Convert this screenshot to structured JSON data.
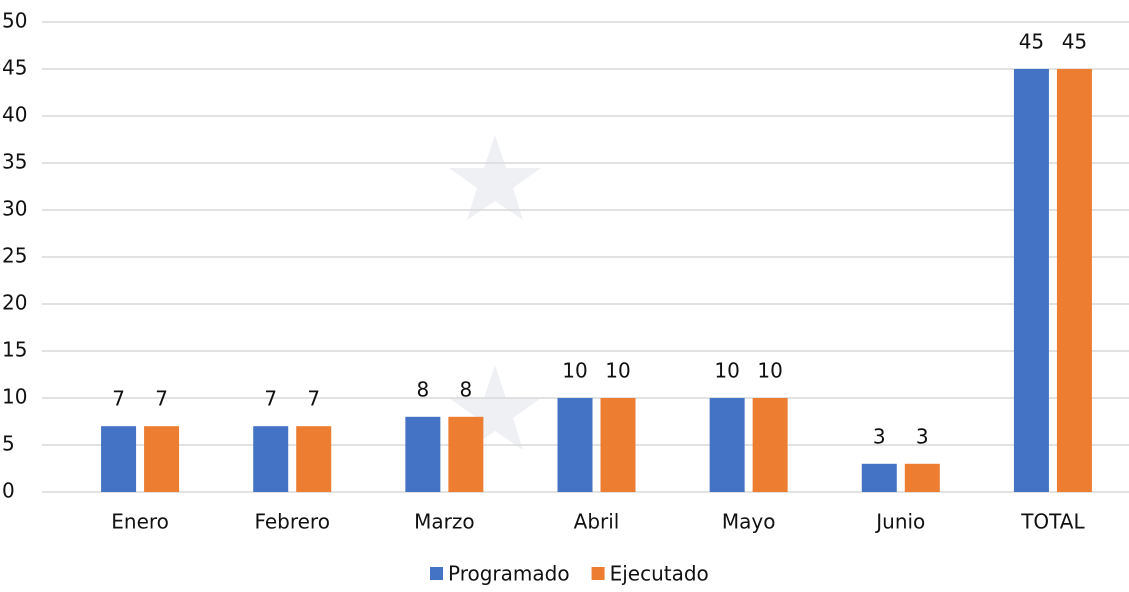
{
  "chart_data": {
    "type": "bar",
    "categories": [
      "Enero",
      "Febrero",
      "Marzo",
      "Abril",
      "Mayo",
      "Junio",
      "TOTAL"
    ],
    "series": [
      {
        "name": "Programado",
        "color": "#4472c4",
        "values": [
          7,
          7,
          8,
          10,
          10,
          3,
          45
        ]
      },
      {
        "name": "Ejecutado",
        "color": "#ed7d31",
        "values": [
          7,
          7,
          8,
          10,
          10,
          3,
          45
        ]
      }
    ],
    "ylim": [
      0,
      50
    ],
    "yticks": [
      0,
      5,
      10,
      15,
      20,
      25,
      30,
      35,
      40,
      45,
      50
    ],
    "grid": true,
    "legend": "bottom"
  }
}
